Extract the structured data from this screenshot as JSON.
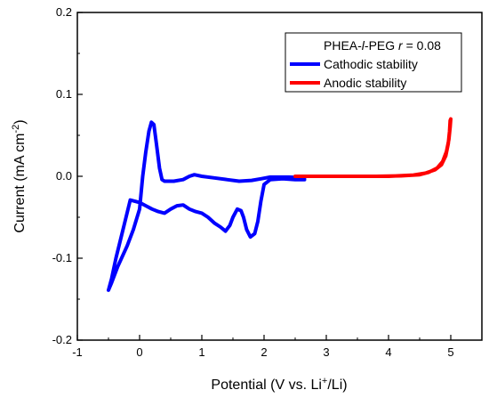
{
  "chart_data": {
    "type": "line",
    "xlabel": {
      "main": "Potential (V vs. Li",
      "sup": "+",
      "tail": "/Li)"
    },
    "ylabel": {
      "main": "Current (mA cm",
      "sup": "-2",
      "tail": ")"
    },
    "xlim": [
      -1,
      5.5
    ],
    "ylim": [
      -0.2,
      0.2
    ],
    "xticks": [
      -1,
      0,
      1,
      2,
      3,
      4,
      5
    ],
    "xtick_labels": [
      "-1",
      "0",
      "1",
      "2",
      "3",
      "4",
      "5"
    ],
    "yticks": [
      -0.2,
      -0.1,
      0.0,
      0.1,
      0.2
    ],
    "ytick_labels": [
      "-0.2",
      "-0.1",
      "0.0",
      "0.1",
      "0.2"
    ],
    "legend": {
      "position": "top-right",
      "title_parts": [
        "PHEA-",
        "l",
        "-PEG ",
        "r",
        " = 0.08"
      ],
      "entries": [
        "Cathodic stability",
        "Anodic stability"
      ]
    },
    "series": [
      {
        "name": "Cathodic stability",
        "color": "#0000ff",
        "points": [
          [
            2.65,
            -0.004
          ],
          [
            2.5,
            -0.004
          ],
          [
            2.3,
            -0.003
          ],
          [
            2.1,
            -0.004
          ],
          [
            2.0,
            -0.01
          ],
          [
            1.95,
            -0.03
          ],
          [
            1.9,
            -0.055
          ],
          [
            1.85,
            -0.07
          ],
          [
            1.78,
            -0.074
          ],
          [
            1.72,
            -0.065
          ],
          [
            1.67,
            -0.05
          ],
          [
            1.63,
            -0.042
          ],
          [
            1.57,
            -0.04
          ],
          [
            1.5,
            -0.05
          ],
          [
            1.45,
            -0.06
          ],
          [
            1.38,
            -0.067
          ],
          [
            1.3,
            -0.062
          ],
          [
            1.2,
            -0.057
          ],
          [
            1.1,
            -0.05
          ],
          [
            1.0,
            -0.045
          ],
          [
            0.9,
            -0.043
          ],
          [
            0.8,
            -0.04
          ],
          [
            0.7,
            -0.035
          ],
          [
            0.6,
            -0.036
          ],
          [
            0.5,
            -0.04
          ],
          [
            0.4,
            -0.045
          ],
          [
            0.3,
            -0.043
          ],
          [
            0.2,
            -0.04
          ],
          [
            0.1,
            -0.036
          ],
          [
            0.0,
            -0.032
          ],
          [
            -0.1,
            -0.03
          ],
          [
            -0.15,
            -0.029
          ],
          [
            -0.25,
            -0.06
          ],
          [
            -0.38,
            -0.1
          ],
          [
            -0.45,
            -0.125
          ],
          [
            -0.5,
            -0.139
          ],
          [
            -0.45,
            -0.13
          ],
          [
            -0.35,
            -0.11
          ],
          [
            -0.2,
            -0.085
          ],
          [
            -0.1,
            -0.065
          ],
          [
            0.0,
            -0.04
          ],
          [
            0.05,
            0.0
          ],
          [
            0.1,
            0.03
          ],
          [
            0.15,
            0.055
          ],
          [
            0.19,
            0.066
          ],
          [
            0.23,
            0.063
          ],
          [
            0.27,
            0.04
          ],
          [
            0.32,
            0.01
          ],
          [
            0.36,
            -0.004
          ],
          [
            0.4,
            -0.006
          ],
          [
            0.55,
            -0.006
          ],
          [
            0.7,
            -0.004
          ],
          [
            0.8,
            0.0
          ],
          [
            0.88,
            0.002
          ],
          [
            1.0,
            0.0
          ],
          [
            1.2,
            -0.002
          ],
          [
            1.4,
            -0.004
          ],
          [
            1.6,
            -0.006
          ],
          [
            1.8,
            -0.005
          ],
          [
            1.95,
            -0.003
          ],
          [
            2.1,
            -0.001
          ],
          [
            2.4,
            -0.001
          ],
          [
            2.65,
            -0.002
          ]
        ]
      },
      {
        "name": "Anodic stability",
        "color": "#ff0000",
        "points": [
          [
            2.5,
            0.0
          ],
          [
            3.0,
            0.0
          ],
          [
            3.5,
            0.0
          ],
          [
            4.0,
            0.0
          ],
          [
            4.4,
            0.0015
          ],
          [
            4.6,
            0.004
          ],
          [
            4.75,
            0.008
          ],
          [
            4.85,
            0.014
          ],
          [
            4.92,
            0.025
          ],
          [
            4.96,
            0.04
          ],
          [
            4.98,
            0.055
          ],
          [
            4.99,
            0.068
          ],
          [
            5.0,
            0.07
          ],
          [
            4.99,
            0.06
          ],
          [
            4.97,
            0.045
          ],
          [
            4.93,
            0.03
          ],
          [
            4.87,
            0.018
          ],
          [
            4.78,
            0.01
          ],
          [
            4.65,
            0.005
          ],
          [
            4.5,
            0.002
          ],
          [
            4.2,
            0.0005
          ],
          [
            3.8,
            0.0
          ],
          [
            3.2,
            0.0
          ],
          [
            2.6,
            0.0
          ]
        ]
      }
    ]
  }
}
